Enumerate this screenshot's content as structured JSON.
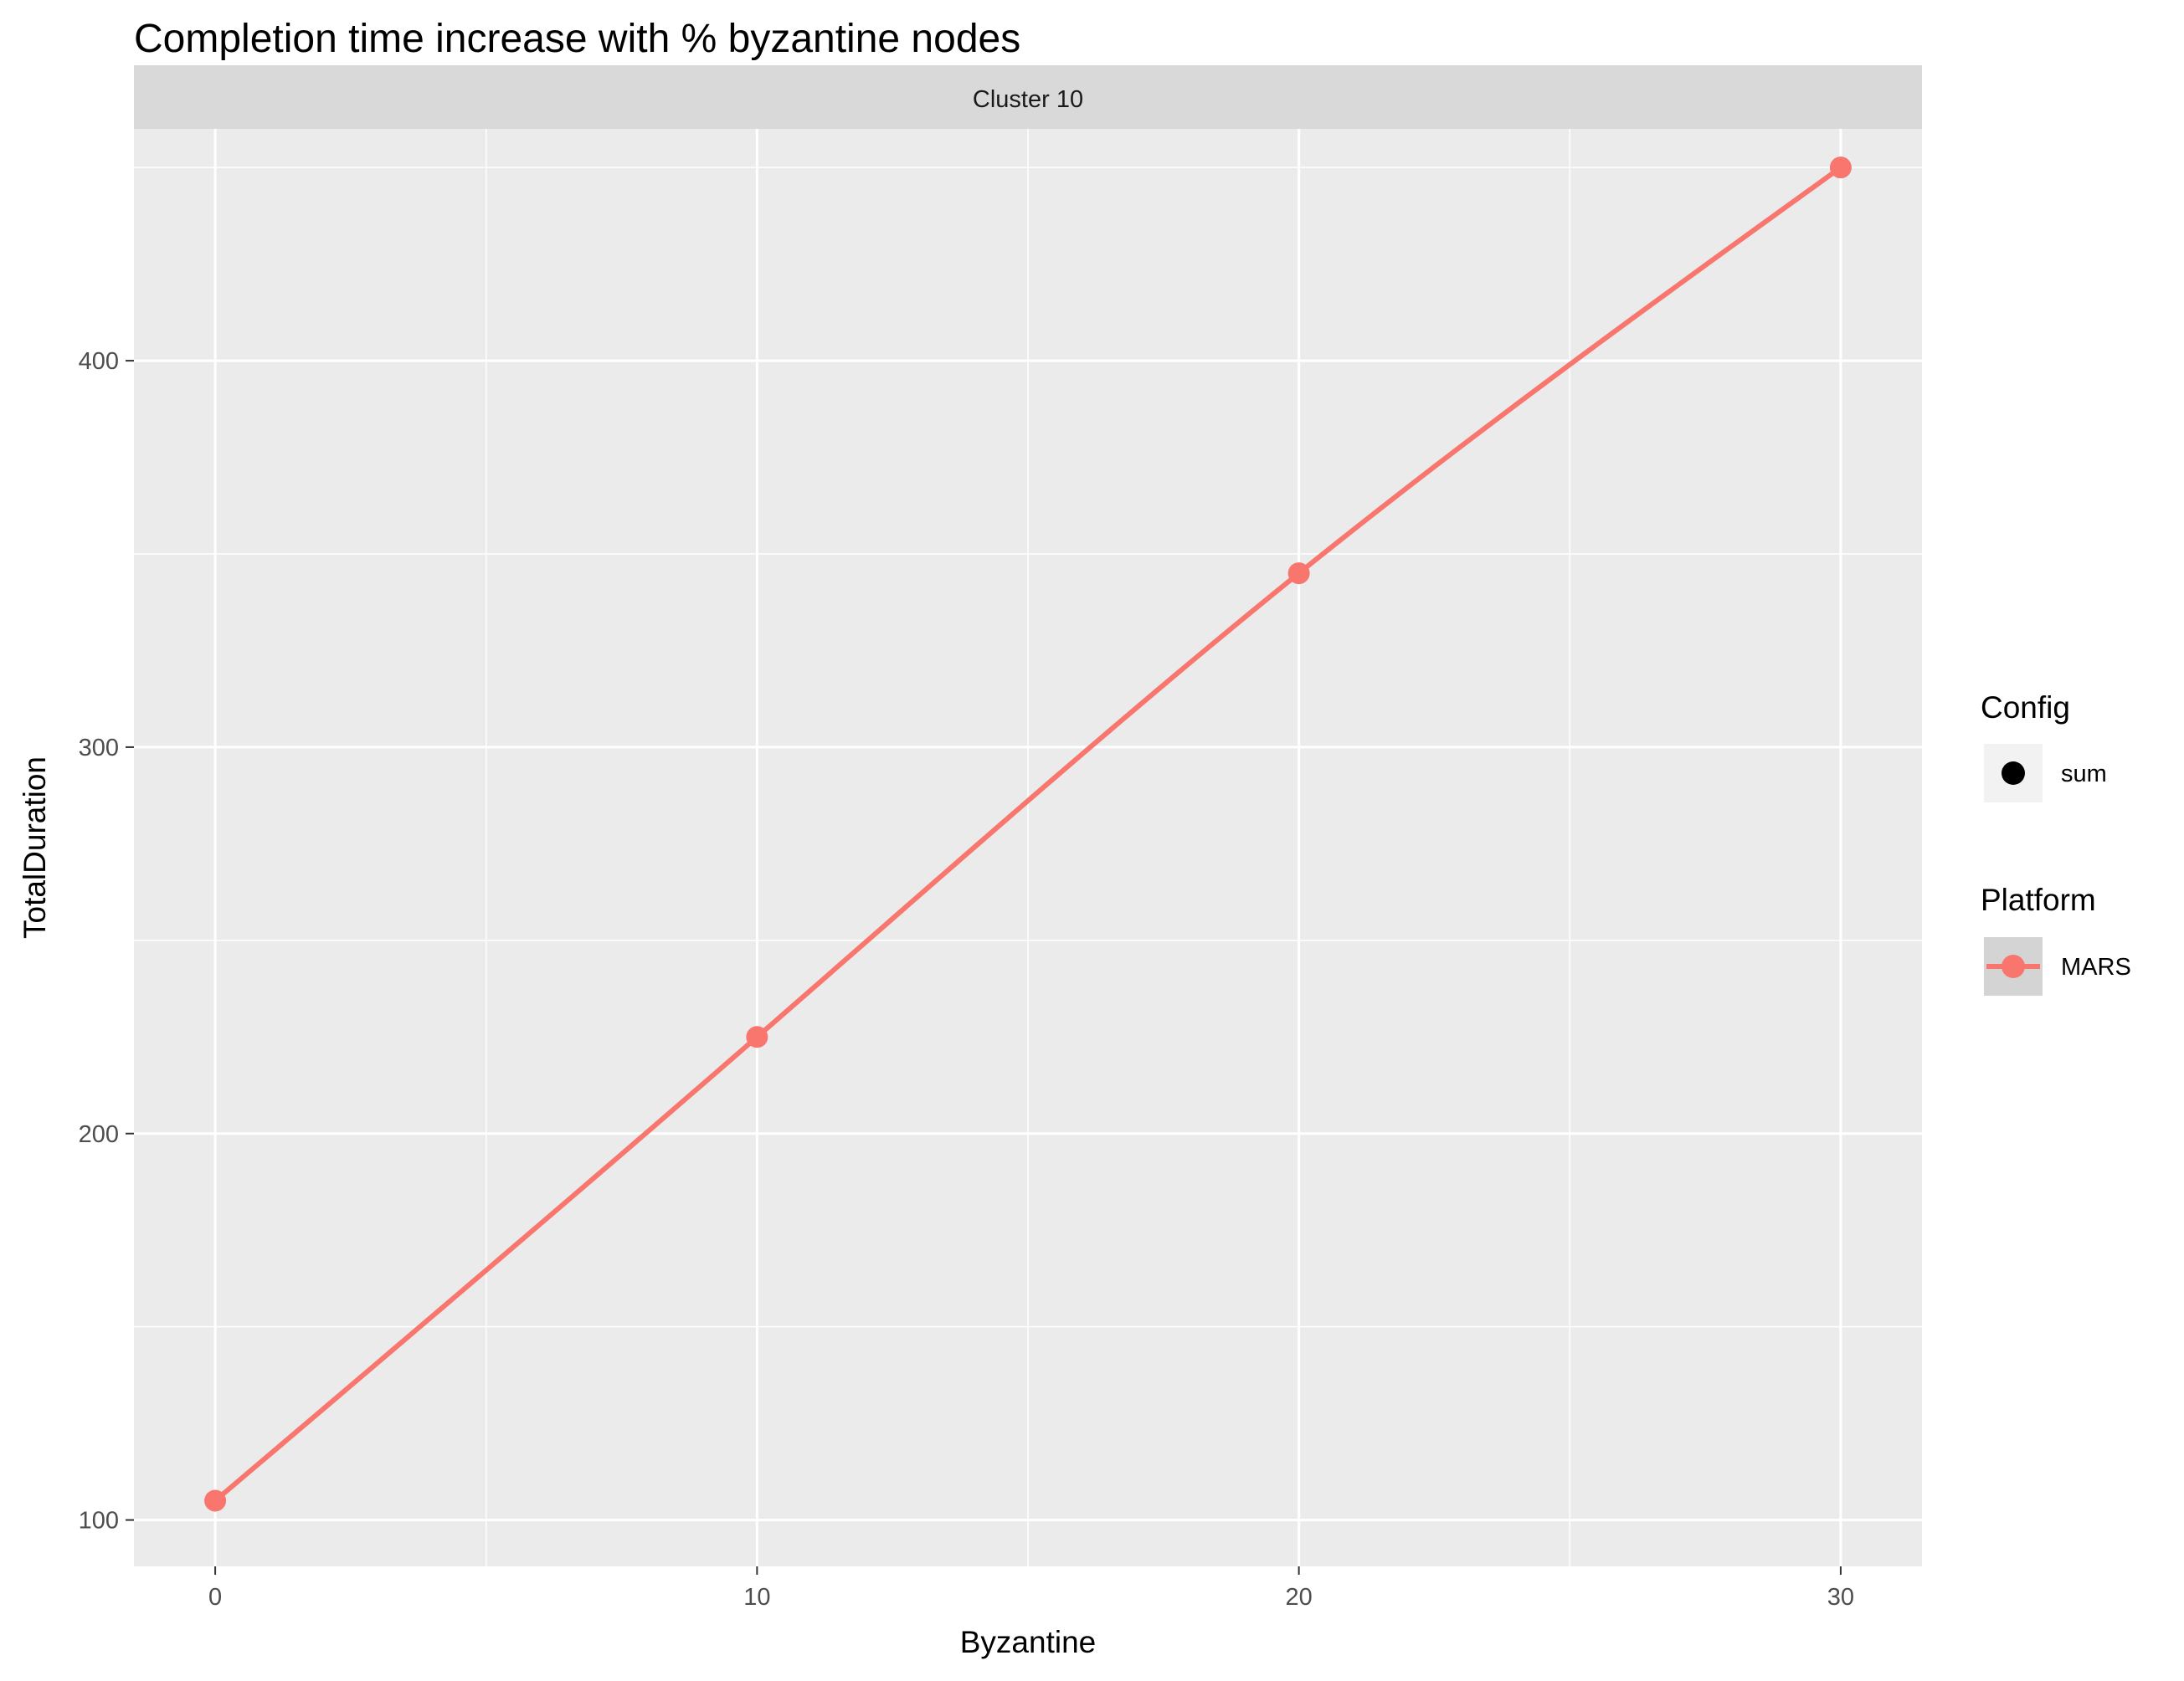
{
  "chart_data": {
    "type": "line",
    "title": "Completion time increase with % byzantine nodes",
    "facet_label": "Cluster 10",
    "xlabel": "Byzantine",
    "ylabel": "TotalDuration",
    "x": [
      0,
      10,
      20,
      30
    ],
    "series": [
      {
        "name": "MARS",
        "values": [
          105,
          225,
          345,
          450
        ],
        "smooth": true
      }
    ],
    "x_ticks": [
      "0",
      "10",
      "20",
      "30"
    ],
    "y_ticks": [
      "100",
      "200",
      "300",
      "400"
    ],
    "xlim": [
      -1.5,
      31.5
    ],
    "ylim": [
      88,
      460
    ],
    "grid": true,
    "legend": {
      "placement": "right",
      "groups": [
        {
          "title": "Config",
          "entries": [
            {
              "label": "sum",
              "shape": "point",
              "color": "#000000"
            }
          ]
        },
        {
          "title": "Platform",
          "entries": [
            {
              "label": "MARS",
              "shape": "line+point",
              "color": "#F8766D"
            }
          ]
        }
      ]
    },
    "colors": {
      "series": "#F8766D",
      "panel": "#EBEBEB",
      "strip": "#D9D9D9",
      "grid": "#FFFFFF"
    }
  }
}
